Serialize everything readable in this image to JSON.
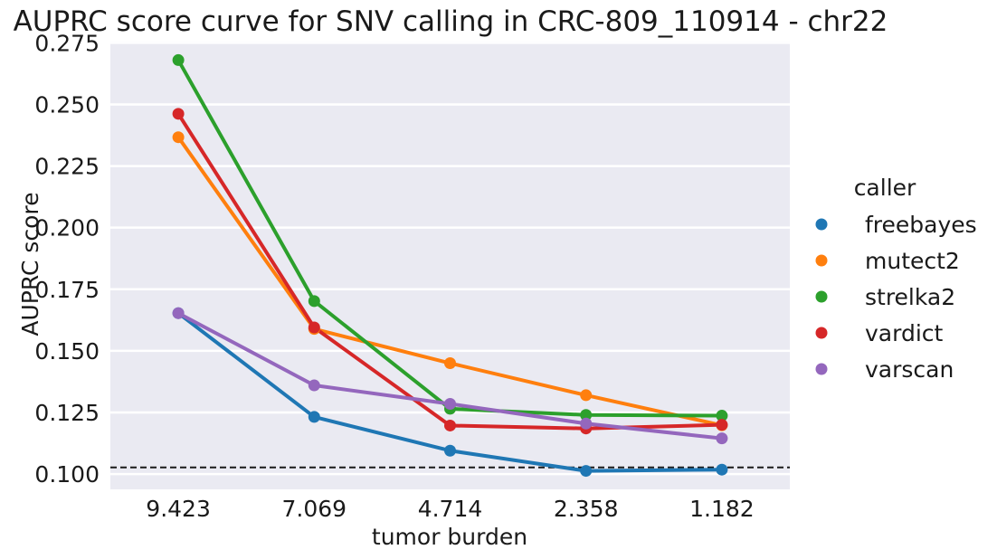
{
  "chart_data": {
    "type": "line",
    "title": "AUPRC score curve for SNV calling in CRC-809_110914 - chr22",
    "xlabel": "tumor burden",
    "ylabel": "AUPRC score",
    "categories": [
      "9.423",
      "7.069",
      "4.714",
      "2.358",
      "1.182"
    ],
    "y_ticks": [
      "0.100",
      "0.125",
      "0.150",
      "0.175",
      "0.200",
      "0.225",
      "0.250",
      "0.275"
    ],
    "ylim": [
      0.0938,
      0.2755
    ],
    "grid": true,
    "background": "#eaeaf2",
    "reference_line": {
      "y": 0.1027,
      "style": "dashed",
      "color": "#1a1a1a"
    },
    "legend": {
      "title": "caller",
      "placement": "right"
    },
    "series": [
      {
        "name": "freebayes",
        "color": "#1f77b4",
        "values": [
          0.1653,
          0.1232,
          0.1095,
          0.1013,
          0.1018
        ]
      },
      {
        "name": "mutect2",
        "color": "#ff7f0e",
        "values": [
          0.2367,
          0.1589,
          0.145,
          0.132,
          0.1198
        ]
      },
      {
        "name": "strelka2",
        "color": "#2ca02c",
        "values": [
          0.268,
          0.1702,
          0.1265,
          0.124,
          0.1237
        ]
      },
      {
        "name": "vardict",
        "color": "#d62728",
        "values": [
          0.2462,
          0.1595,
          0.1197,
          0.1185,
          0.12
        ]
      },
      {
        "name": "varscan",
        "color": "#9467bd",
        "values": [
          0.1653,
          0.136,
          0.1285,
          0.1205,
          0.1145
        ]
      }
    ]
  }
}
